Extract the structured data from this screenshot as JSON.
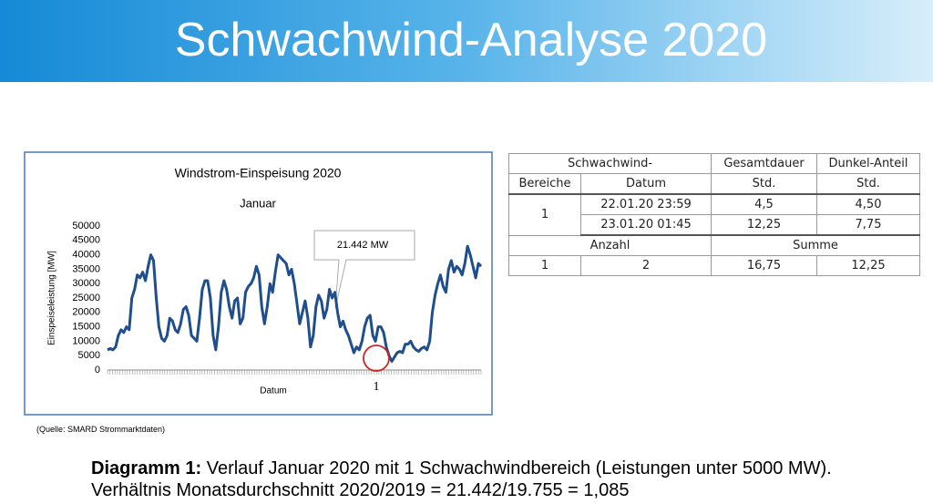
{
  "header": {
    "title": "Schwachwind-Analyse 2020"
  },
  "chart_data": {
    "type": "line",
    "title": "Windstrom-Einspeisung 2020",
    "subtitle": "Januar",
    "y_label": "Einspeiseleistung [MW]",
    "x_label": "Datum",
    "annotations": [
      "21.442 MW",
      "1"
    ],
    "color": "#1f4e8c",
    "grid": false,
    "ylim": [
      0,
      50000
    ],
    "yticks": [
      0,
      5000,
      10000,
      15000,
      20000,
      25000,
      30000,
      35000,
      40000,
      45000,
      50000
    ],
    "values": [
      7000,
      7500,
      7000,
      8000,
      12000,
      14000,
      13000,
      15000,
      14000,
      25000,
      28000,
      33000,
      32000,
      34000,
      31000,
      36000,
      40000,
      38000,
      25000,
      15000,
      11000,
      10000,
      12000,
      18000,
      17000,
      14000,
      13000,
      16000,
      21000,
      22000,
      19000,
      12000,
      11000,
      10000,
      18000,
      28000,
      31000,
      31000,
      25000,
      12000,
      7000,
      15000,
      27000,
      31000,
      28000,
      22000,
      18000,
      24000,
      25000,
      16000,
      18000,
      27000,
      29000,
      30000,
      32000,
      36000,
      33000,
      22000,
      16000,
      22000,
      30000,
      27000,
      34000,
      40000,
      39000,
      38000,
      37000,
      33000,
      35000,
      30000,
      23000,
      16000,
      20000,
      24000,
      18000,
      8000,
      12000,
      22000,
      26000,
      24000,
      18000,
      21000,
      28000,
      25000,
      27000,
      20000,
      15000,
      17000,
      14000,
      12000,
      9000,
      6000,
      8000,
      7000,
      10000,
      15000,
      18000,
      19000,
      12000,
      10000,
      15000,
      15000,
      13000,
      8000,
      5000,
      3000,
      4500,
      6000,
      6500,
      6000,
      9000,
      9000,
      10000,
      8000,
      7000,
      6500,
      7500,
      8000,
      7000,
      10000,
      20000,
      26000,
      30000,
      33000,
      29000,
      27000,
      35000,
      38000,
      34000,
      36000,
      35000,
      33000,
      37000,
      43000,
      40000,
      36000,
      32000,
      37000,
      36000
    ]
  },
  "source": "(Quelle: SMARD Strommarktdaten)",
  "table": {
    "rows": [
      [
        "Schwachwind-",
        "Gesamtdauer",
        "Dunkel-Anteil"
      ],
      [
        "Bereiche",
        "Datum",
        "Std.",
        "Std."
      ],
      [
        "1",
        "22.01.20 23:59",
        "4,5",
        "4,50"
      ],
      [
        "23.01.20 01:45",
        "12,25",
        "7,75"
      ],
      [
        "Anzahl",
        "Summe"
      ],
      [
        "1",
        "2",
        "16,75",
        "12,25"
      ]
    ]
  },
  "caption": {
    "label": "Diagramm 1:",
    "text": "Verlauf Januar 2020 mit 1 Schwachwindbereich (Leistungen unter 5000 MW). Verhältnis Monatsdurchschnitt 2020/2019 = 21.442/19.755 = 1,085"
  }
}
